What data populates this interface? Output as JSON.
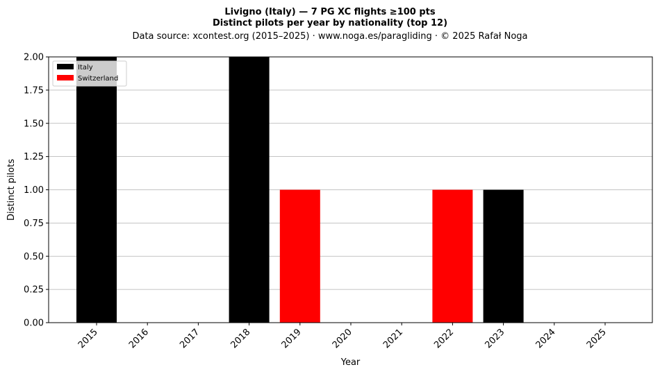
{
  "chart_data": {
    "type": "bar",
    "stacked": true,
    "title_lines": [
      "Livigno (Italy)  —  7 PG XC flights ≥100 pts",
      "Distinct pilots per year by nationality (top 12)",
      "Data source: xcontest.org (2015–2025)  ·  www.noga.es/paragliding  ·  © 2025 Rafał Noga"
    ],
    "xlabel": "Year",
    "ylabel": "Distinct pilots",
    "categories": [
      "2015",
      "2016",
      "2017",
      "2018",
      "2019",
      "2020",
      "2021",
      "2022",
      "2023",
      "2024",
      "2025"
    ],
    "series": [
      {
        "name": "Italy",
        "color": "#000000",
        "values": [
          2,
          0,
          0,
          2,
          0,
          0,
          0,
          0,
          1,
          0,
          0
        ]
      },
      {
        "name": "Switzerland",
        "color": "#ff0000",
        "values": [
          0,
          0,
          0,
          0,
          1,
          0,
          0,
          1,
          0,
          0,
          0
        ]
      }
    ],
    "ylim": [
      0,
      2
    ],
    "yticks": [
      "0.00",
      "0.25",
      "0.50",
      "0.75",
      "1.00",
      "1.25",
      "1.50",
      "1.75",
      "2.00"
    ],
    "grid": "y",
    "legend_position": "top-left"
  }
}
